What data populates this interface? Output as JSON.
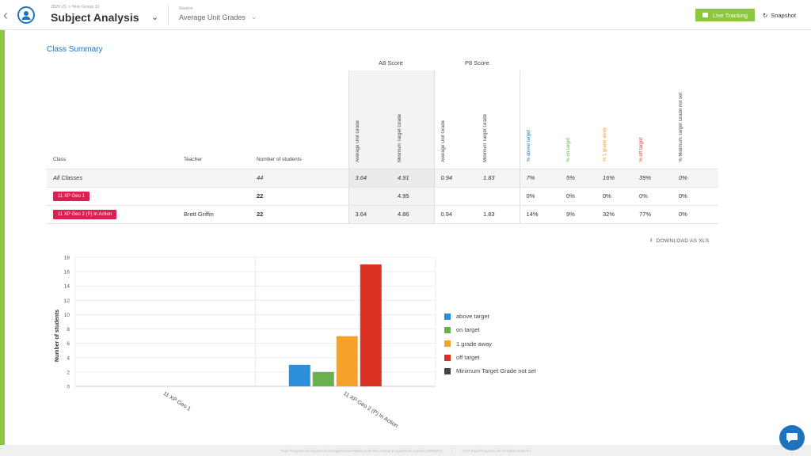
{
  "header": {
    "breadcrumb": "2020-21 > Year Group 11",
    "title": "Subject Analysis",
    "source_label": "Source",
    "source_value": "Average Unit Grades",
    "live_tracking_label": "Live Tracking",
    "snapshot_label": "Snapshot"
  },
  "section": {
    "title": "Class Summary"
  },
  "table": {
    "group_heads": {
      "a8": "A8 Score",
      "p8": "P8 Score"
    },
    "columns": {
      "class": "Class",
      "teacher": "Teacher",
      "students": "Number of students",
      "a8_avg": "Average Unit Grade",
      "a8_min": "Minimum Target Grade",
      "p8_avg": "Average Unit Grade",
      "p8_min": "Minimum Target Grade",
      "above": "% above target",
      "on": "% on target",
      "away": "% 1 grade away",
      "off": "% off target",
      "notset": "% Minimum Target Grade not set"
    },
    "all_row": {
      "class": "All Classes",
      "teacher": "",
      "students": "44",
      "a8_avg": "3.64",
      "a8_min": "4.91",
      "p8_avg": "0.94",
      "p8_min": "1.83",
      "above": "7%",
      "on": "5%",
      "away": "16%",
      "off": "39%",
      "notset": "0%"
    },
    "rows": [
      {
        "class": "11 XP Geo 1",
        "teacher": "",
        "students": "22",
        "a8_avg": "",
        "a8_min": "4.95",
        "p8_avg": "",
        "p8_min": "",
        "above": "0%",
        "on": "0%",
        "away": "0%",
        "off": "0%",
        "notset": "0%"
      },
      {
        "class": "11 XP Geo 2 (P) In Action",
        "teacher": "Brett Griffin",
        "students": "22",
        "a8_avg": "3.64",
        "a8_min": "4.86",
        "p8_avg": "0.94",
        "p8_min": "1.83",
        "above": "14%",
        "on": "9%",
        "away": "32%",
        "off": "77%",
        "notset": "0%"
      }
    ]
  },
  "download_label": "DOWNLOAD AS XLS",
  "chart_data": {
    "type": "bar",
    "categories": [
      "11 XP Geo 1",
      "11 XP Geo 2 (P) In Action"
    ],
    "series": [
      {
        "name": "above target",
        "color": "#2b8fdb",
        "values": [
          0,
          3
        ]
      },
      {
        "name": "on target",
        "color": "#6ab04c",
        "values": [
          0,
          2
        ]
      },
      {
        "name": "1 grade away",
        "color": "#f5a22a",
        "values": [
          0,
          7
        ]
      },
      {
        "name": "off target",
        "color": "#dc3223",
        "values": [
          0,
          17
        ]
      },
      {
        "name": "Minimum Target Grade not set",
        "color": "#444444",
        "values": [
          0,
          0
        ]
      }
    ],
    "ylabel": "Number of students",
    "xlabel": "",
    "ylim": [
      0,
      18
    ],
    "yticks": [
      0,
      2,
      4,
      6,
      8,
      10,
      12,
      14,
      16,
      18
    ],
    "grid": true,
    "legend_position": "right"
  },
  "footer": {
    "left": "Pupil Progress Ltd registered in England and Wales under the company registration number 08908431",
    "sep": "|",
    "right": "2023 Pupil Progress Ltd. All rights reserved"
  }
}
